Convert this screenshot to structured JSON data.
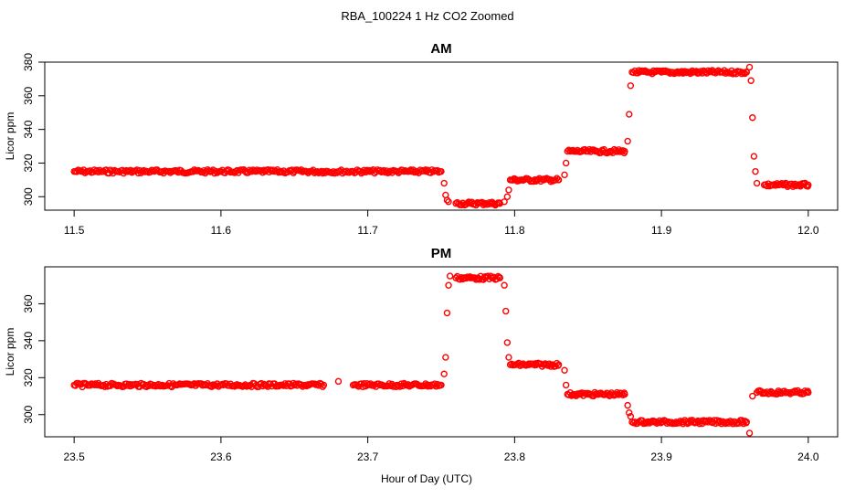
{
  "figure": {
    "title": "RBA_100224  1 Hz CO2 Zoomed",
    "xlabel": "Hour of Day (UTC)"
  },
  "colors": {
    "points": "#ff0000",
    "frame": "#000000",
    "background": "#ffffff"
  },
  "chart_data": [
    {
      "type": "scatter",
      "title": "AM",
      "xlabel": "",
      "ylabel": "Licor ppm",
      "xlim": [
        11.48,
        12.02
      ],
      "ylim": [
        292,
        380
      ],
      "x_ticks": [
        "11.5",
        "11.6",
        "11.7",
        "11.8",
        "11.9",
        "12.0"
      ],
      "y_ticks": [
        "300",
        "320",
        "340",
        "360",
        "380"
      ],
      "grid": false,
      "series": [
        {
          "marker": "open-circle",
          "x": [
            11.5,
            11.51,
            11.52,
            11.53,
            11.54,
            11.55,
            11.56,
            11.57,
            11.58,
            11.59,
            11.6,
            11.61,
            11.62,
            11.63,
            11.64,
            11.65,
            11.66,
            11.67,
            11.68,
            11.69,
            11.7,
            11.71,
            11.72,
            11.73,
            11.74,
            11.75,
            11.752,
            11.753,
            11.754,
            11.755,
            11.76,
            11.765,
            11.77,
            11.775,
            11.78,
            11.785,
            11.79,
            11.793,
            11.795,
            11.796,
            11.797,
            11.8,
            11.805,
            11.81,
            11.815,
            11.82,
            11.825,
            11.83,
            11.834,
            11.835,
            11.836,
            11.84,
            11.845,
            11.85,
            11.855,
            11.86,
            11.865,
            11.87,
            11.875,
            11.877,
            11.878,
            11.879,
            11.88,
            11.885,
            11.89,
            11.895,
            11.9,
            11.905,
            11.91,
            11.915,
            11.92,
            11.925,
            11.93,
            11.935,
            11.94,
            11.945,
            11.95,
            11.955,
            11.958,
            11.96,
            11.961,
            11.962,
            11.963,
            11.964,
            11.965,
            11.97,
            11.975,
            11.98,
            11.985,
            11.99,
            11.995,
            12.0
          ],
          "y": [
            315,
            315,
            315,
            315,
            315,
            315,
            315,
            315,
            315,
            315,
            315,
            315,
            315,
            315,
            315,
            315,
            315,
            315,
            315,
            315,
            315,
            315,
            315,
            315,
            315,
            315,
            308,
            301,
            298,
            297,
            296,
            296,
            296,
            296,
            296,
            296,
            296,
            297,
            300,
            304,
            310,
            310,
            310,
            310,
            310,
            310,
            310,
            310,
            313,
            320,
            327,
            327,
            327,
            327,
            327,
            327,
            327,
            327,
            327,
            333,
            349,
            366,
            374,
            374,
            374,
            374,
            374,
            374,
            374,
            374,
            374,
            374,
            374,
            374,
            374,
            374,
            374,
            374,
            374,
            377,
            369,
            347,
            324,
            315,
            308,
            307,
            307,
            307,
            307,
            307,
            307,
            307
          ]
        }
      ]
    },
    {
      "type": "scatter",
      "title": "PM",
      "xlabel": "Hour of Day (UTC)",
      "ylabel": "Licor ppm",
      "xlim": [
        23.48,
        24.02
      ],
      "ylim": [
        288,
        380
      ],
      "x_ticks": [
        "23.5",
        "23.6",
        "23.7",
        "23.8",
        "23.9",
        "24.0"
      ],
      "y_ticks": [
        "300",
        "320",
        "340",
        "360"
      ],
      "grid": false,
      "series": [
        {
          "marker": "open-circle",
          "x": [
            23.5,
            23.51,
            23.52,
            23.53,
            23.54,
            23.55,
            23.56,
            23.57,
            23.58,
            23.59,
            23.6,
            23.61,
            23.62,
            23.63,
            23.64,
            23.65,
            23.66,
            23.67,
            23.68,
            23.69,
            23.7,
            23.71,
            23.72,
            23.73,
            23.74,
            23.75,
            23.752,
            23.753,
            23.754,
            23.755,
            23.756,
            23.76,
            23.765,
            23.77,
            23.775,
            23.78,
            23.785,
            23.79,
            23.793,
            23.794,
            23.795,
            23.796,
            23.797,
            23.8,
            23.805,
            23.81,
            23.815,
            23.82,
            23.825,
            23.83,
            23.834,
            23.835,
            23.836,
            23.84,
            23.845,
            23.85,
            23.855,
            23.86,
            23.865,
            23.87,
            23.875,
            23.877,
            23.878,
            23.879,
            23.88,
            23.885,
            23.89,
            23.895,
            23.9,
            23.905,
            23.91,
            23.915,
            23.92,
            23.925,
            23.93,
            23.935,
            23.94,
            23.945,
            23.95,
            23.955,
            23.958,
            23.96,
            23.962,
            23.965,
            23.97,
            23.975,
            23.98,
            23.985,
            23.99,
            23.995,
            24.0
          ],
          "y": [
            316,
            316,
            316,
            316,
            316,
            316,
            316,
            316,
            316,
            316,
            316,
            316,
            316,
            316,
            316,
            316,
            316,
            316,
            318,
            316,
            316,
            316,
            316,
            316,
            316,
            316,
            322,
            331,
            355,
            370,
            375,
            374,
            374,
            374,
            374,
            374,
            374,
            374,
            370,
            356,
            339,
            331,
            327,
            327,
            327,
            327,
            327,
            327,
            327,
            327,
            324,
            316,
            311,
            311,
            311,
            311,
            311,
            311,
            311,
            311,
            311,
            305,
            301,
            299,
            296,
            296,
            296,
            296,
            296,
            296,
            296,
            296,
            296,
            296,
            296,
            296,
            296,
            296,
            296,
            296,
            296,
            290,
            310,
            312,
            312,
            312,
            312,
            312,
            312,
            312,
            312
          ]
        }
      ]
    }
  ]
}
